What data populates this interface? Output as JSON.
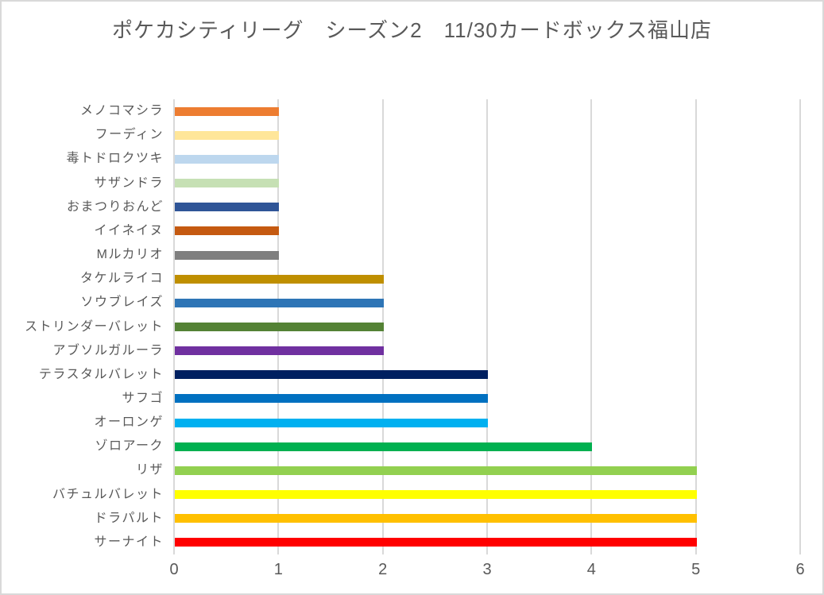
{
  "chart_data": {
    "type": "bar",
    "orientation": "horizontal",
    "title": "ポケカシティリーグ　シーズン2　11/30カードボックス福山店",
    "categories": [
      "メノコマシラ",
      "フーディン",
      "毒トドロクツキ",
      "サザンドラ",
      "おまつりおんど",
      "イイネイヌ",
      "Mルカリオ",
      "タケルライコ",
      "ソウブレイズ",
      "ストリンダーバレット",
      "アブソルガルーラ",
      "テラスタルバレット",
      "サフゴ",
      "オーロンゲ",
      "ゾロアーク",
      "リザ",
      "バチュルバレット",
      "ドラパルト",
      "サーナイト"
    ],
    "values": [
      1,
      1,
      1,
      1,
      1,
      1,
      1,
      2,
      2,
      2,
      2,
      3,
      3,
      3,
      4,
      5,
      5,
      5,
      5
    ],
    "bar_colors": [
      "#ED7D31",
      "#FFE699",
      "#BDD7EE",
      "#C6E0B4",
      "#2F5597",
      "#C55A11",
      "#7F7F7F",
      "#BF8F00",
      "#2E75B6",
      "#548235",
      "#7030A0",
      "#002060",
      "#0070C0",
      "#00B0F0",
      "#00B050",
      "#92D050",
      "#FFFF00",
      "#FFC000",
      "#FF0000"
    ],
    "xlabel": "",
    "ylabel": "",
    "x_ticks": [
      0,
      1,
      2,
      3,
      4,
      5,
      6
    ],
    "xlim": [
      0,
      6
    ],
    "grid": "vertical-only",
    "legend": "none"
  },
  "styles": {
    "background": "#FFFFFF",
    "border_color": "#D9D9D9",
    "grid_color": "#D9D9D9",
    "text_color": "#595959"
  }
}
